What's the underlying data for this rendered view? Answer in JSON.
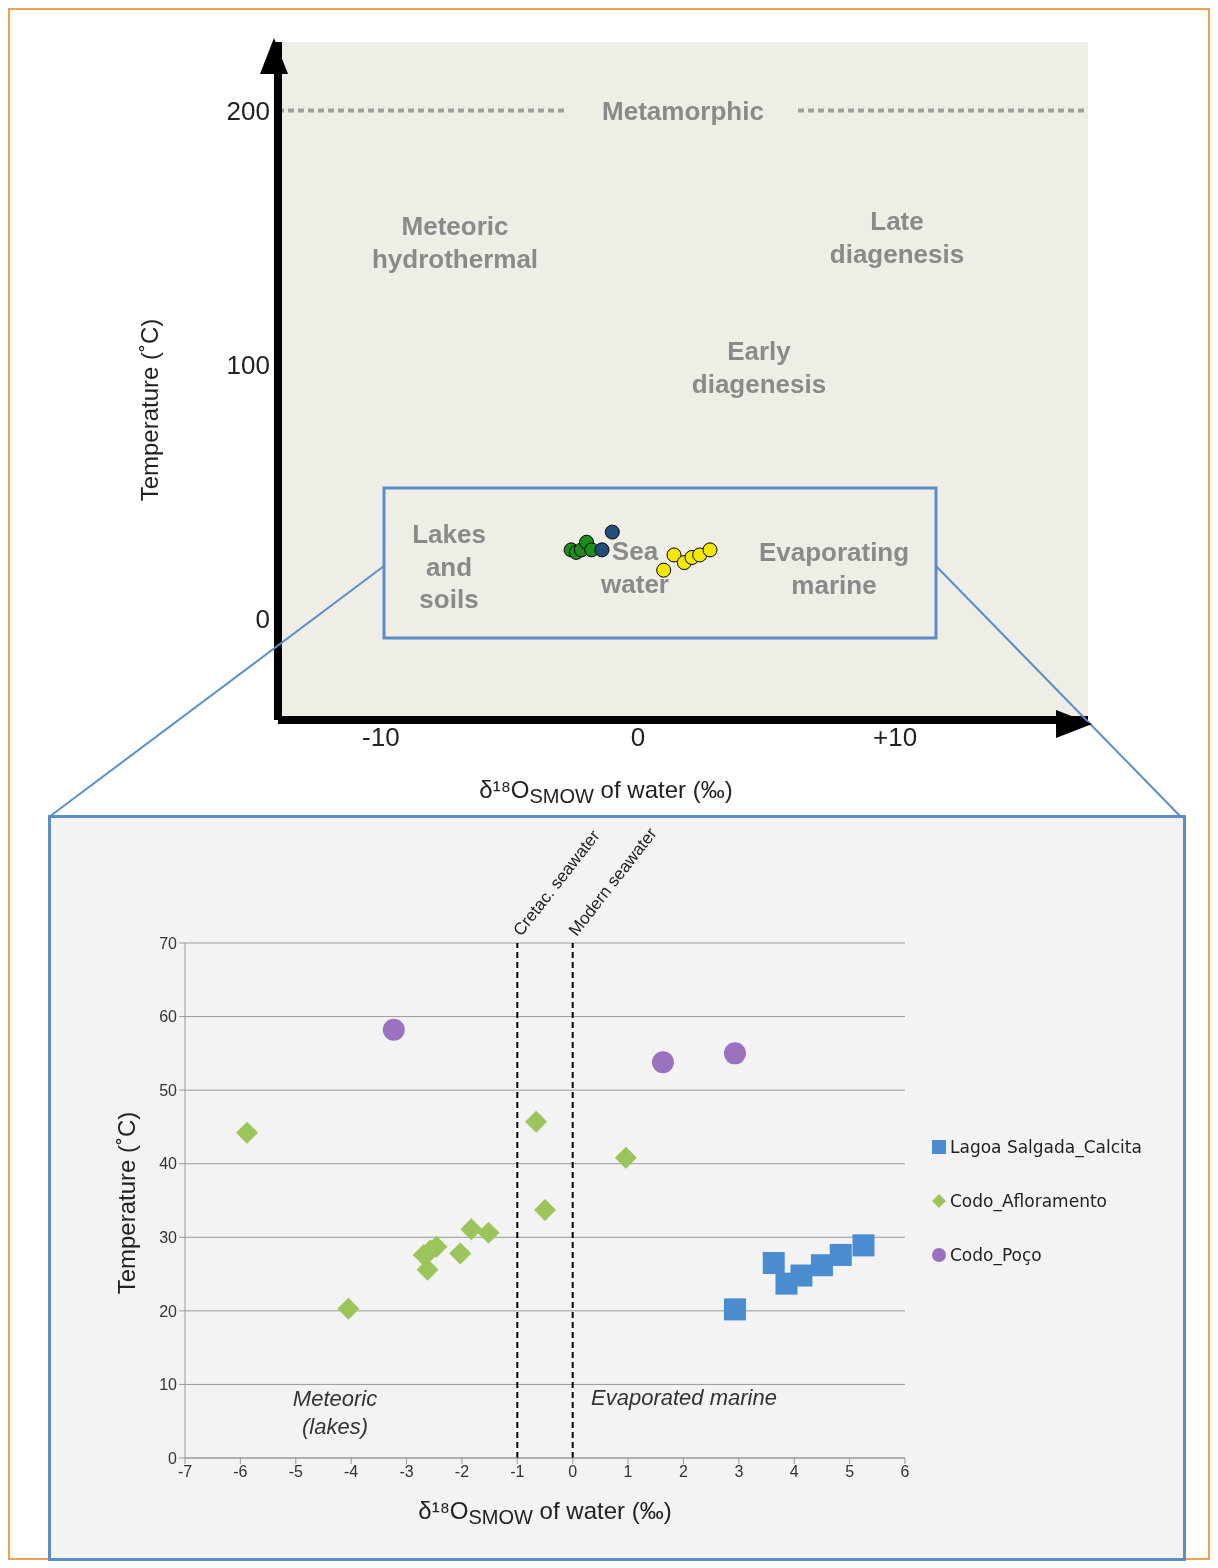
{
  "chart_data": [
    {
      "type": "scatter",
      "xlabel": "δ¹⁸O$_{SMOW}$ of water (‰)",
      "ylabel": "Temperature (˚C)",
      "xlim": [
        -14,
        17.5
      ],
      "ylim": [
        -40,
        227
      ],
      "xticks": [
        -10,
        0,
        {
          "value": 10,
          "label": "+10"
        }
      ],
      "yticks": [
        0,
        100,
        200
      ],
      "grid": false,
      "legend": false,
      "marker": "circle",
      "ref_lines": [
        {
          "axis": "y",
          "value": 200,
          "label": "Metamorphic",
          "line_style": "dashed",
          "color": "#a0a09c"
        }
      ],
      "annotations": [
        "Meteoric\nhydrothermal",
        "Late\ndiagenesis",
        "Early\ndiagenesis",
        "Lakes\nand\nsoils",
        "Sea\nwater",
        "Evaporating\nmarine"
      ],
      "series": [
        {
          "color": "#1e8c1e",
          "x": [
            -2.6,
            -2.4,
            -2.2,
            -2.0,
            -1.8
          ],
          "values": [
            27,
            26,
            27,
            30,
            27
          ]
        },
        {
          "color": "#1f4e79",
          "x": [
            -1.0,
            -1.4
          ],
          "values": [
            34,
            27
          ]
        },
        {
          "color": "#f5e800",
          "x": [
            1.0,
            1.4,
            1.8,
            2.1,
            2.4,
            2.8
          ],
          "values": [
            19,
            25,
            22,
            24,
            25,
            27
          ]
        }
      ]
    },
    {
      "type": "scatter",
      "xlabel": "δ¹⁸O$_{SMOW}$ of water (‰)",
      "ylabel": "Temperature (˚C)",
      "xlim": [
        -7,
        6
      ],
      "ylim": [
        0,
        70
      ],
      "xticks": [
        -7,
        -6,
        -5,
        -4,
        -3,
        -2,
        -1,
        0,
        1,
        2,
        3,
        4,
        5,
        6
      ],
      "yticks": [
        0,
        10,
        20,
        30,
        40,
        50,
        60,
        70
      ],
      "grid": "y",
      "legend": "right",
      "ref_lines": [
        {
          "axis": "x",
          "value": -1,
          "label": "Cretac. seawater",
          "line_style": "dashed",
          "color": "#000000"
        },
        {
          "axis": "x",
          "value": 0,
          "label": "Modern seawater",
          "line_style": "dashed",
          "color": "#000000"
        }
      ],
      "annotations": [
        "Meteoric\n(lakes)",
        "Evaporated marine"
      ],
      "series": [
        {
          "name": "Lagoa Salgada_Calcita",
          "color": "#4a8cd0",
          "marker": "square",
          "x": [
            2.93,
            3.63,
            3.86,
            4.13,
            4.5,
            4.84,
            5.25
          ],
          "values": [
            20.2,
            26.5,
            23.7,
            24.8,
            26.2,
            27.6,
            28.9
          ]
        },
        {
          "name": "Codo_Afloramento",
          "color": "#9bc55a",
          "marker": "diamond",
          "x": [
            -5.88,
            -4.05,
            -2.62,
            -2.69,
            -2.57,
            -2.46,
            -2.03,
            -1.83,
            -1.52,
            -0.66,
            -0.5,
            0.96
          ],
          "values": [
            44.2,
            20.3,
            25.6,
            27.6,
            28.2,
            28.7,
            27.8,
            31.1,
            30.6,
            45.7,
            33.7,
            40.8
          ]
        },
        {
          "name": "Codo_Poço",
          "color": "#9b72c0",
          "marker": "circle",
          "x": [
            -3.23,
            1.63,
            2.93
          ],
          "values": [
            58.2,
            53.8,
            55.0
          ]
        }
      ]
    }
  ]
}
